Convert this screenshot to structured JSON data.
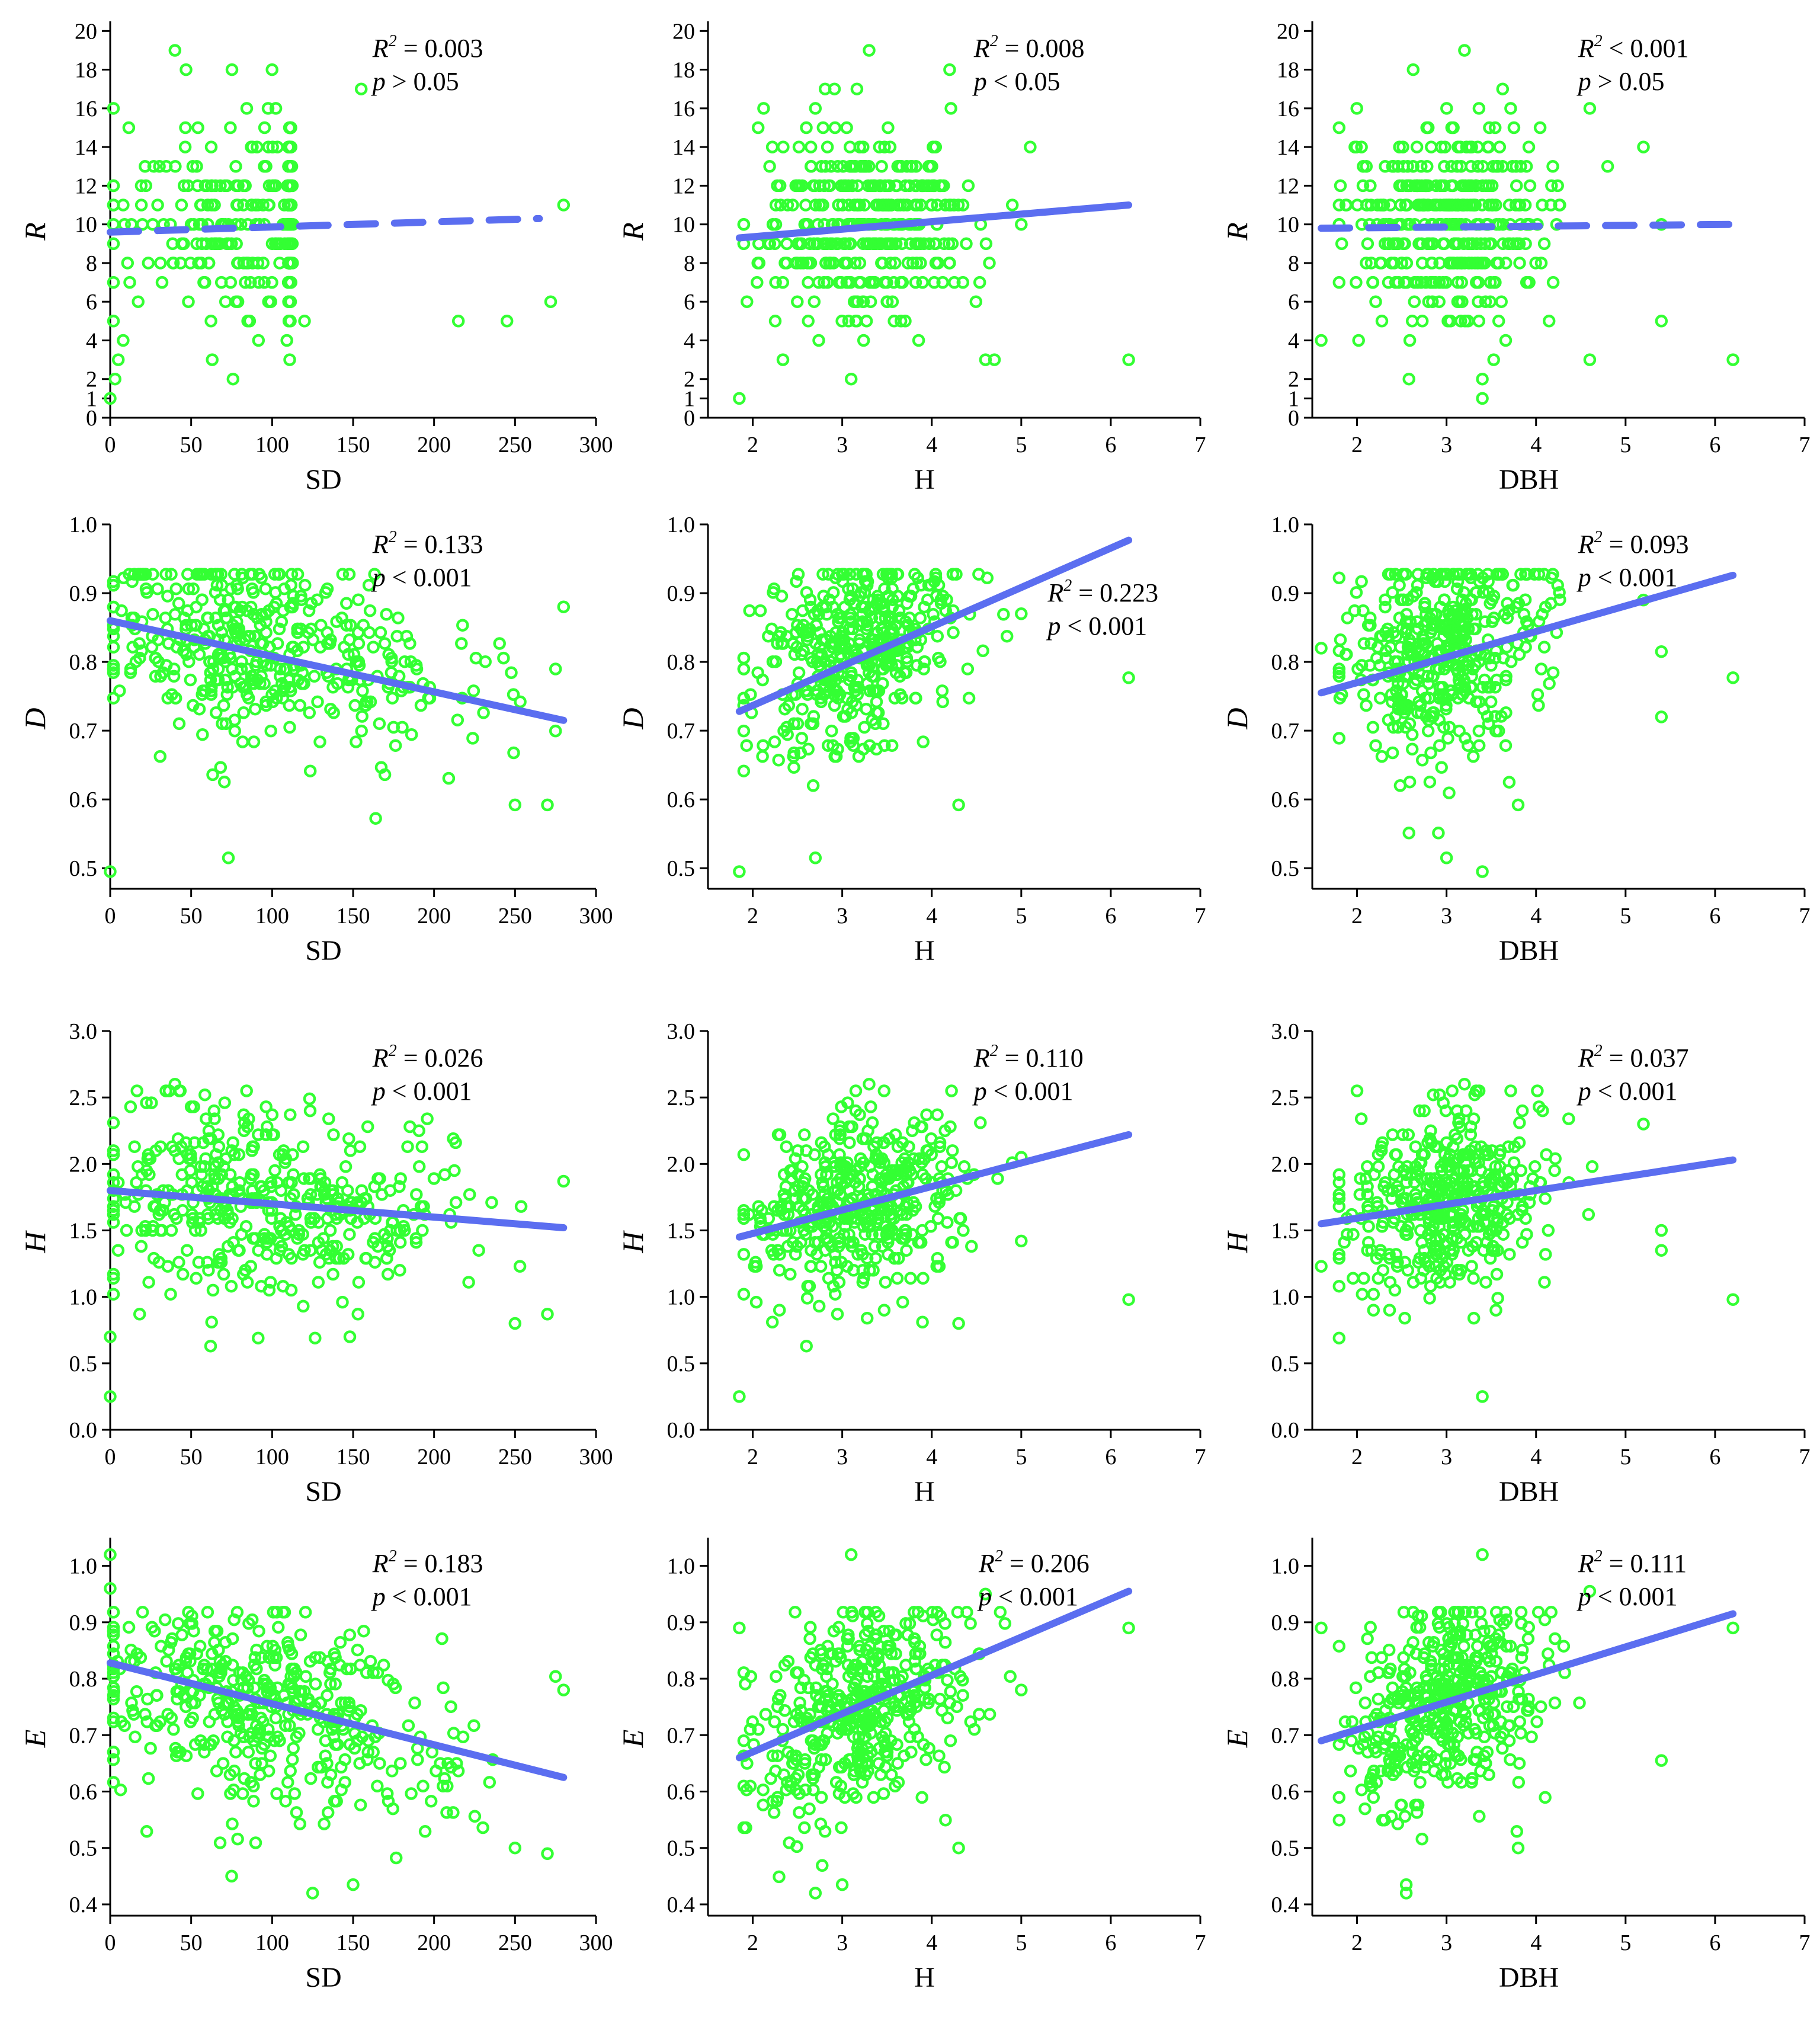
{
  "chart_data": {
    "type": "scatter",
    "layout": "4x3 grid",
    "x_variables": [
      {
        "label": "SD",
        "xlim": [
          0,
          300
        ],
        "xticks": [
          "0",
          "50",
          "100",
          "150",
          "200",
          "250",
          "300"
        ]
      },
      {
        "label": "H",
        "xlim": [
          1.5,
          7
        ],
        "xticks": [
          "2",
          "3",
          "4",
          "5",
          "6",
          "7"
        ]
      },
      {
        "label": "DBH",
        "xlim": [
          1.5,
          7
        ],
        "xticks": [
          "2",
          "3",
          "4",
          "5",
          "6",
          "7"
        ]
      }
    ],
    "y_variables": [
      {
        "label": "R",
        "ylim": [
          0,
          20.5
        ],
        "yticks": [
          "0",
          "1",
          "2",
          "4",
          "6",
          "8",
          "10",
          "12",
          "14",
          "16",
          "18",
          "20"
        ]
      },
      {
        "label": "D",
        "ylim": [
          0.47,
          1.0
        ],
        "yticks": [
          "0.5",
          "0.6",
          "0.7",
          "0.8",
          "0.9",
          "1.0"
        ]
      },
      {
        "label": "H",
        "ylim": [
          0,
          3.0
        ],
        "yticks": [
          "0.0",
          "0.5",
          "1.0",
          "1.5",
          "2.0",
          "2.5",
          "3.0"
        ]
      },
      {
        "label": "E",
        "ylim": [
          0.38,
          1.05
        ],
        "yticks": [
          "0.4",
          "0.5",
          "0.6",
          "0.7",
          "0.8",
          "0.9",
          "1.0"
        ]
      }
    ],
    "point_color": "#33ff33",
    "fit_color": "#5b6ef0",
    "panels": [
      {
        "row": 0,
        "col": 0,
        "r2": "0.003",
        "p": "> 0.05",
        "fit": {
          "x": [
            0,
            265
          ],
          "y": [
            9.6,
            10.3
          ],
          "dashed": true
        },
        "stat_pos": "top-right",
        "cloud": {
          "xmin": 2,
          "xmax": 280,
          "ymin": 1,
          "ymax": 19,
          "center": [
            110,
            10
          ],
          "sx": [
            55,
            1.0
          ],
          "sy": 2.6,
          "n": 380,
          "integer_y": true,
          "seed": 11
        },
        "points": [
          [
            0,
            1
          ],
          [
            3,
            2
          ],
          [
            5,
            3
          ],
          [
            8,
            4
          ],
          [
            40,
            19
          ],
          [
            63,
            3
          ],
          [
            155,
            17
          ],
          [
            245,
            5
          ],
          [
            272,
            6
          ],
          [
            280,
            11
          ],
          [
            215,
            5
          ],
          [
            120,
            5
          ]
        ]
      },
      {
        "row": 0,
        "col": 1,
        "r2": "0.008",
        "p": "< 0.05",
        "fit": {
          "x": [
            1.85,
            6.2
          ],
          "y": [
            9.3,
            11.0
          ],
          "dashed": false
        },
        "stat_pos": "top-right",
        "cloud": {
          "xmin": 1.9,
          "xmax": 4.9,
          "ymin": 2,
          "ymax": 19,
          "center": [
            3.2,
            10
          ],
          "sx": [
            0.6,
            0.6
          ],
          "sy": 2.6,
          "n": 380,
          "integer_y": true,
          "seed": 12
        },
        "points": [
          [
            1.85,
            1
          ],
          [
            3.1,
            2
          ],
          [
            6.2,
            3
          ],
          [
            5.0,
            10
          ],
          [
            5.1,
            14
          ],
          [
            4.6,
            3
          ],
          [
            4.7,
            3
          ],
          [
            3.3,
            19
          ],
          [
            4.2,
            18
          ]
        ]
      },
      {
        "row": 0,
        "col": 2,
        "r2": "< 0.001",
        "p": "> 0.05",
        "fit": {
          "x": [
            1.6,
            6.2
          ],
          "y": [
            9.8,
            10.0
          ],
          "dashed": true
        },
        "stat_pos": "top-right",
        "cloud": {
          "xmin": 1.8,
          "xmax": 4.8,
          "ymin": 2,
          "ymax": 19,
          "center": [
            3.0,
            10
          ],
          "sx": [
            0.55,
            0.55
          ],
          "sy": 2.6,
          "n": 380,
          "integer_y": true,
          "seed": 13
        },
        "points": [
          [
            1.6,
            4
          ],
          [
            3.4,
            1
          ],
          [
            3.4,
            2
          ],
          [
            6.2,
            3
          ],
          [
            5.4,
            5
          ],
          [
            5.4,
            10
          ],
          [
            5.2,
            14
          ],
          [
            4.8,
            13
          ],
          [
            4.6,
            16
          ],
          [
            4.6,
            3
          ],
          [
            3.2,
            19
          ]
        ]
      },
      {
        "row": 1,
        "col": 0,
        "r2": "0.133",
        "p": "< 0.001",
        "fit": {
          "x": [
            0,
            280
          ],
          "y": [
            0.86,
            0.715
          ],
          "dashed": false
        },
        "stat_pos": "top-right",
        "cloud": {
          "xmin": 2,
          "xmax": 275,
          "ymin": 0.55,
          "ymax": 0.925,
          "center": [
            90,
            0.82
          ],
          "sx": [
            50,
            65
          ],
          "sy": 0.075,
          "slope": -0.0005,
          "n": 420,
          "integer_y": false,
          "seed": 21
        },
        "points": [
          [
            0,
            0.495
          ],
          [
            73,
            0.515
          ],
          [
            280,
            0.88
          ],
          [
            270,
            0.592
          ],
          [
            250,
            0.592
          ]
        ]
      },
      {
        "row": 1,
        "col": 1,
        "r2": "0.223",
        "p": "< 0.001",
        "fit": {
          "x": [
            1.85,
            6.2
          ],
          "y": [
            0.728,
            0.977
          ],
          "dashed": false
        },
        "stat_pos": "mid-right",
        "cloud": {
          "xmin": 1.9,
          "xmax": 5.0,
          "ymin": 0.55,
          "ymax": 0.925,
          "center": [
            3.2,
            0.82
          ],
          "sx": [
            0.6,
            0.55
          ],
          "sy": 0.07,
          "slope": 0.045,
          "n": 420,
          "integer_y": false,
          "seed": 22
        },
        "points": [
          [
            1.85,
            0.495
          ],
          [
            2.7,
            0.515
          ],
          [
            6.2,
            0.777
          ],
          [
            4.3,
            0.592
          ],
          [
            5.0,
            0.87
          ]
        ]
      },
      {
        "row": 1,
        "col": 2,
        "r2": "0.093",
        "p": "< 0.001",
        "fit": {
          "x": [
            1.6,
            6.2
          ],
          "y": [
            0.755,
            0.926
          ],
          "dashed": false
        },
        "stat_pos": "top-right",
        "cloud": {
          "xmin": 1.8,
          "xmax": 4.8,
          "ymin": 0.55,
          "ymax": 0.925,
          "center": [
            3.0,
            0.82
          ],
          "sx": [
            0.55,
            0.55
          ],
          "sy": 0.075,
          "slope": 0.03,
          "n": 420,
          "integer_y": false,
          "seed": 23
        },
        "points": [
          [
            1.6,
            0.82
          ],
          [
            3.4,
            0.495
          ],
          [
            3.0,
            0.515
          ],
          [
            6.2,
            0.777
          ],
          [
            5.4,
            0.72
          ],
          [
            5.4,
            0.815
          ],
          [
            5.2,
            0.89
          ],
          [
            3.7,
            0.625
          ],
          [
            3.8,
            0.592
          ]
        ]
      },
      {
        "row": 2,
        "col": 0,
        "r2": "0.026",
        "p": "< 0.001",
        "fit": {
          "x": [
            0,
            280
          ],
          "y": [
            1.8,
            1.52
          ],
          "dashed": false
        },
        "stat_pos": "top-right",
        "cloud": {
          "xmin": 2,
          "xmax": 275,
          "ymin": 0.7,
          "ymax": 2.55,
          "center": [
            90,
            1.7
          ],
          "sx": [
            50,
            65
          ],
          "sy": 0.35,
          "slope": -0.001,
          "n": 420,
          "integer_y": false,
          "seed": 31
        },
        "points": [
          [
            0,
            0.25
          ],
          [
            0,
            0.7
          ],
          [
            62,
            0.63
          ],
          [
            148,
            0.7
          ],
          [
            250,
            0.8
          ],
          [
            270,
            0.87
          ],
          [
            280,
            1.87
          ],
          [
            40,
            2.6
          ]
        ]
      },
      {
        "row": 2,
        "col": 1,
        "r2": "0.110",
        "p": "< 0.001",
        "fit": {
          "x": [
            1.85,
            6.2
          ],
          "y": [
            1.45,
            2.22
          ],
          "dashed": false
        },
        "stat_pos": "top-right",
        "cloud": {
          "xmin": 1.9,
          "xmax": 4.9,
          "ymin": 0.7,
          "ymax": 2.55,
          "center": [
            3.2,
            1.7
          ],
          "sx": [
            0.6,
            0.55
          ],
          "sy": 0.33,
          "slope": 0.17,
          "n": 420,
          "integer_y": false,
          "seed": 32
        },
        "points": [
          [
            1.85,
            0.25
          ],
          [
            6.2,
            0.98
          ],
          [
            5.0,
            2.05
          ],
          [
            5.0,
            1.42
          ],
          [
            4.3,
            0.8
          ],
          [
            2.6,
            0.63
          ],
          [
            3.3,
            2.6
          ]
        ]
      },
      {
        "row": 2,
        "col": 2,
        "r2": "0.037",
        "p": "< 0.001",
        "fit": {
          "x": [
            1.6,
            6.2
          ],
          "y": [
            1.55,
            2.03
          ],
          "dashed": false
        },
        "stat_pos": "top-right",
        "cloud": {
          "xmin": 1.8,
          "xmax": 4.8,
          "ymin": 0.7,
          "ymax": 2.55,
          "center": [
            3.0,
            1.7
          ],
          "sx": [
            0.55,
            0.55
          ],
          "sy": 0.35,
          "slope": 0.1,
          "n": 420,
          "integer_y": false,
          "seed": 33
        },
        "points": [
          [
            1.6,
            1.23
          ],
          [
            3.4,
            0.25
          ],
          [
            6.2,
            0.98
          ],
          [
            5.4,
            1.35
          ],
          [
            5.4,
            1.5
          ],
          [
            5.2,
            2.3
          ],
          [
            3.2,
            2.6
          ],
          [
            2.0,
            2.55
          ]
        ]
      },
      {
        "row": 3,
        "col": 0,
        "r2": "0.183",
        "p": "< 0.001",
        "fit": {
          "x": [
            0,
            280
          ],
          "y": [
            0.828,
            0.625
          ],
          "dashed": false
        },
        "stat_pos": "top-right",
        "cloud": {
          "xmin": 2,
          "xmax": 275,
          "ymin": 0.45,
          "ymax": 0.92,
          "center": [
            90,
            0.75
          ],
          "sx": [
            50,
            65
          ],
          "sy": 0.09,
          "slope": -0.0007,
          "n": 420,
          "integer_y": false,
          "seed": 41
        },
        "points": [
          [
            0,
            1.02
          ],
          [
            0,
            0.96
          ],
          [
            125,
            0.42
          ],
          [
            150,
            0.435
          ],
          [
            75,
            0.45
          ],
          [
            280,
            0.78
          ],
          [
            270,
            0.49
          ],
          [
            250,
            0.5
          ]
        ]
      },
      {
        "row": 3,
        "col": 1,
        "r2": "0.206",
        "p": "< 0.001",
        "fit": {
          "x": [
            1.85,
            6.2
          ],
          "y": [
            0.66,
            0.955
          ],
          "dashed": false
        },
        "stat_pos": "top-mid",
        "cloud": {
          "xmin": 1.9,
          "xmax": 4.9,
          "ymin": 0.45,
          "ymax": 0.92,
          "center": [
            3.2,
            0.74
          ],
          "sx": [
            0.6,
            0.55
          ],
          "sy": 0.09,
          "slope": 0.06,
          "n": 420,
          "integer_y": false,
          "seed": 42
        },
        "points": [
          [
            1.85,
            0.89
          ],
          [
            3.1,
            1.02
          ],
          [
            2.7,
            0.42
          ],
          [
            3.0,
            0.435
          ],
          [
            6.2,
            0.89
          ],
          [
            4.3,
            0.5
          ],
          [
            5.0,
            0.78
          ],
          [
            4.6,
            0.95
          ]
        ]
      },
      {
        "row": 3,
        "col": 2,
        "r2": "0.111",
        "p": "< 0.001",
        "fit": {
          "x": [
            1.6,
            6.2
          ],
          "y": [
            0.69,
            0.915
          ],
          "dashed": false
        },
        "stat_pos": "top-right",
        "cloud": {
          "xmin": 1.8,
          "xmax": 4.8,
          "ymin": 0.45,
          "ymax": 0.92,
          "center": [
            3.0,
            0.75
          ],
          "sx": [
            0.55,
            0.55
          ],
          "sy": 0.09,
          "slope": 0.05,
          "n": 420,
          "integer_y": false,
          "seed": 43
        },
        "points": [
          [
            1.6,
            0.89
          ],
          [
            3.4,
            1.02
          ],
          [
            2.55,
            0.42
          ],
          [
            2.55,
            0.435
          ],
          [
            6.2,
            0.89
          ],
          [
            5.4,
            0.655
          ],
          [
            4.6,
            0.955
          ],
          [
            3.8,
            0.5
          ]
        ]
      }
    ]
  }
}
